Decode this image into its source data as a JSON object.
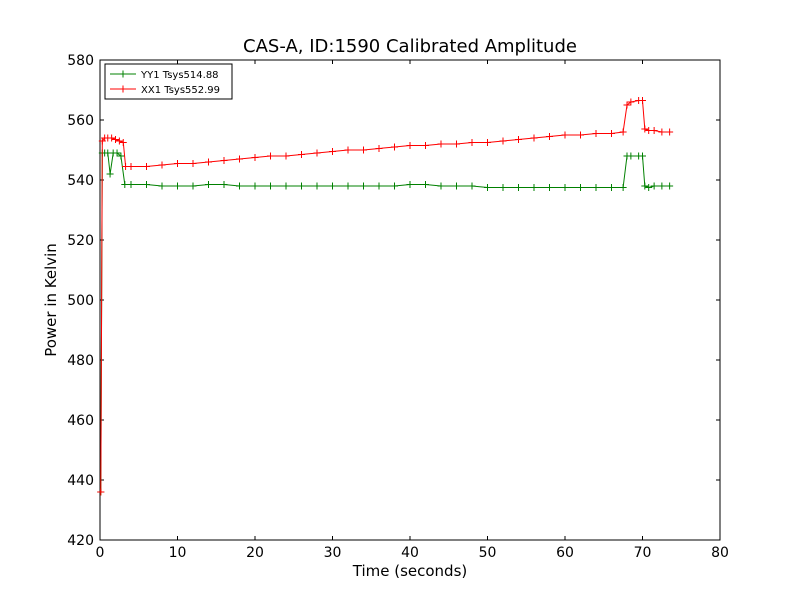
{
  "chart_data": {
    "type": "line",
    "title": "CAS-A, ID:1590 Calibrated Amplitude",
    "xlabel": "Time (seconds)",
    "ylabel": "Power in Kelvin",
    "xlim": [
      0,
      80
    ],
    "ylim": [
      420,
      580
    ],
    "xticks": [
      0,
      10,
      20,
      30,
      40,
      50,
      60,
      70,
      80
    ],
    "yticks": [
      420,
      440,
      460,
      480,
      500,
      520,
      540,
      560,
      580
    ],
    "grid": false,
    "legend_position": "top-left",
    "marker": "+",
    "series": [
      {
        "name": "YY1 Tsys514.88",
        "color": "#008000",
        "x": [
          0.1,
          0.3,
          0.6,
          1.0,
          1.3,
          1.7,
          2.2,
          2.7,
          3.2,
          4,
          6,
          8,
          10,
          12,
          14,
          16,
          18,
          20,
          22,
          24,
          26,
          28,
          30,
          32,
          34,
          36,
          38,
          40,
          42,
          44,
          46,
          48,
          50,
          52,
          54,
          56,
          58,
          60,
          62,
          64,
          66,
          67.5,
          68.0,
          68.5,
          69.5,
          70.0,
          70.3,
          70.8,
          71.5,
          72.5,
          73.5
        ],
        "y": [
          436,
          549,
          549,
          549,
          542,
          549,
          549,
          548,
          538.5,
          538.5,
          538.5,
          538,
          538,
          538,
          538.5,
          538.5,
          538,
          538,
          538,
          538,
          538,
          538,
          538,
          538,
          538,
          538,
          538,
          538.5,
          538.5,
          538,
          538,
          538,
          537.5,
          537.5,
          537.5,
          537.5,
          537.5,
          537.5,
          537.5,
          537.5,
          537.5,
          537.5,
          548,
          548,
          548,
          548,
          538,
          537.5,
          538,
          538,
          538
        ]
      },
      {
        "name": "XX1 Tsys552.99",
        "color": "#ff0000",
        "x": [
          0.1,
          0.3,
          0.6,
          1.0,
          1.5,
          2.0,
          2.5,
          3.0,
          3.3,
          4,
          6,
          8,
          10,
          12,
          14,
          16,
          18,
          20,
          22,
          24,
          26,
          28,
          30,
          32,
          34,
          36,
          38,
          40,
          42,
          44,
          46,
          48,
          50,
          52,
          54,
          56,
          58,
          60,
          62,
          64,
          66,
          67.5,
          68.0,
          68.5,
          69.5,
          70.0,
          70.3,
          70.8,
          71.5,
          72.5,
          73.5
        ],
        "y": [
          436,
          553,
          554,
          554,
          554,
          553.5,
          553,
          552.5,
          544.5,
          544.5,
          544.5,
          545,
          545.5,
          545.5,
          546,
          546.5,
          547,
          547.5,
          548,
          548,
          548.5,
          549,
          549.5,
          550,
          550,
          550.5,
          551,
          551.5,
          551.5,
          552,
          552,
          552.5,
          552.5,
          553,
          553.5,
          554,
          554.5,
          555,
          555,
          555.5,
          555.5,
          556,
          565,
          566,
          566.5,
          566.5,
          557,
          556.5,
          556.5,
          556,
          556
        ]
      }
    ]
  }
}
